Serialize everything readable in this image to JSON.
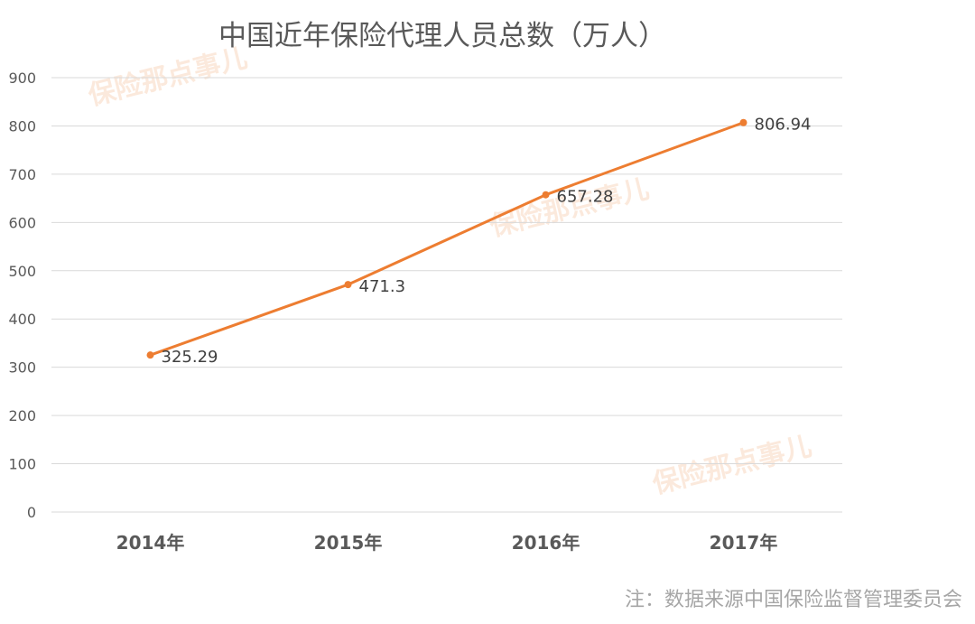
{
  "chart_data": {
    "type": "line",
    "title": "中国近年保险代理人员总数（万人）",
    "categories": [
      "2014年",
      "2015年",
      "2016年",
      "2017年"
    ],
    "series": [
      {
        "values": [
          325.29,
          471.3,
          657.28,
          806.94
        ],
        "labels": [
          "325.29",
          "471.3",
          "657.28",
          "806.94"
        ],
        "color": "#ed7d31"
      }
    ],
    "ylim": [
      0,
      900
    ],
    "yticks": [
      "0",
      "100",
      "200",
      "300",
      "400",
      "500",
      "600",
      "700",
      "800",
      "900"
    ],
    "grid": true,
    "xlabel": "",
    "ylabel": ""
  },
  "note": "注：数据来源中国保险监督管理委员会",
  "watermark": "保险那点事儿"
}
